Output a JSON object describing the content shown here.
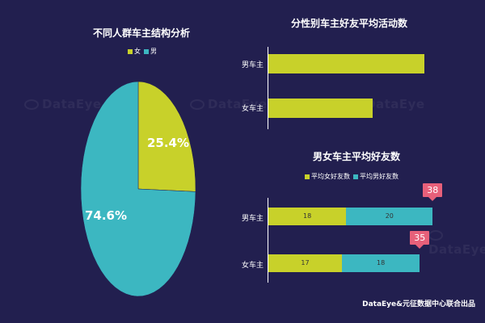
{
  "colors": {
    "background": "#221f4f",
    "female": "#c8d12a",
    "male": "#3cb7c1",
    "callout": "#e7607a"
  },
  "watermark": "DataEye",
  "footer": "DataEye&元征数据中心联合出品",
  "chart_data": [
    {
      "type": "pie",
      "title": "不同人群车主结构分析",
      "legend": [
        "女",
        "男"
      ],
      "legend_position": "top",
      "slices": [
        {
          "name": "女",
          "value": 25.4,
          "label": "25.4%",
          "color": "#c8d12a"
        },
        {
          "name": "男",
          "value": 74.6,
          "label": "74.6%",
          "color": "#3cb7c1"
        }
      ]
    },
    {
      "type": "bar",
      "orientation": "horizontal",
      "title": "分性别车主好友平均活动数",
      "categories": [
        "男车主",
        "女车主"
      ],
      "values": [
        0.9,
        0.6
      ],
      "color": "#c8d12a",
      "grid": false
    },
    {
      "type": "bar",
      "orientation": "horizontal",
      "stacked": true,
      "title": "男女车主平均好友数",
      "legend": [
        "平均女好友数",
        "平均男好友数"
      ],
      "legend_position": "top",
      "categories": [
        "男车主",
        "女车主"
      ],
      "series": [
        {
          "name": "平均女好友数",
          "values": [
            18,
            17
          ],
          "color": "#c8d12a"
        },
        {
          "name": "平均男好友数",
          "values": [
            20,
            18
          ],
          "color": "#3cb7c1"
        }
      ],
      "totals": [
        38,
        35
      ],
      "xlim": [
        0,
        40
      ],
      "grid": false
    }
  ]
}
